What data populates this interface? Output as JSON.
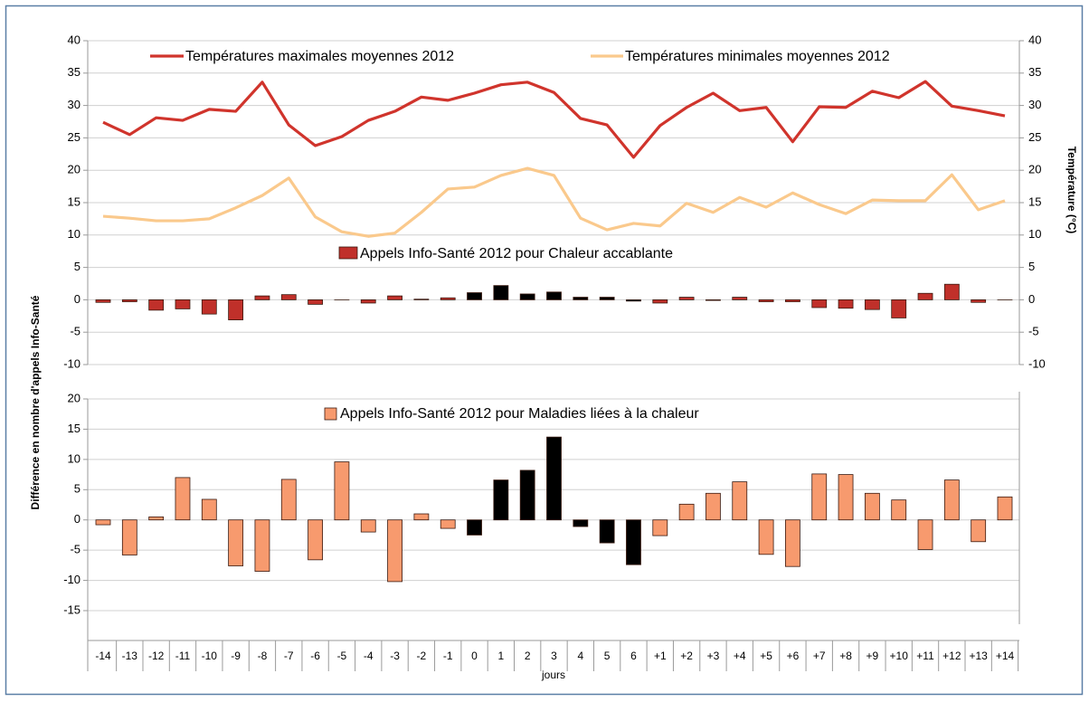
{
  "chart_data": [
    {
      "type": "combo",
      "ylabel": "Différence en nombre d'appels Info-Santé",
      "y2label": "Température (°C)",
      "ylim": [
        -10,
        40
      ],
      "yticks": [
        -10,
        -5,
        0,
        5,
        10,
        15,
        20,
        25,
        30,
        35,
        40
      ],
      "y2lim": [
        -10,
        40
      ],
      "y2ticks": [
        -10,
        -5,
        0,
        5,
        10,
        15,
        20,
        25,
        30,
        35,
        40
      ],
      "grid": true,
      "series": [
        {
          "name": "Températures maximales moyennes 2012",
          "type": "line",
          "axis": "y2",
          "color": "#d0342c",
          "values": [
            27.4,
            25.5,
            28.1,
            27.7,
            29.4,
            29.1,
            33.6,
            27.0,
            23.8,
            25.2,
            27.7,
            29.1,
            31.3,
            30.8,
            31.9,
            33.2,
            33.6,
            32.0,
            28.0,
            27.0,
            22.0,
            26.9,
            29.7,
            31.9,
            29.2,
            29.7,
            24.4,
            29.8,
            29.7,
            32.2,
            31.2,
            33.7,
            29.9,
            29.2,
            28.4
          ]
        },
        {
          "name": "Températures minimales moyennes 2012",
          "type": "line",
          "axis": "y2",
          "color": "#fac98c",
          "values": [
            12.9,
            12.6,
            12.2,
            12.2,
            12.5,
            14.2,
            16.1,
            18.8,
            12.8,
            10.5,
            9.8,
            10.3,
            13.5,
            17.1,
            17.4,
            19.2,
            20.3,
            19.2,
            12.6,
            10.8,
            11.8,
            11.4,
            14.9,
            13.5,
            15.8,
            14.3,
            16.5,
            14.7,
            13.3,
            15.4,
            15.3,
            15.3,
            19.3,
            13.9,
            15.3
          ]
        },
        {
          "name": "Appels Info-Santé 2012 pour Chaleur accablante",
          "type": "bar",
          "color": "#c0302a",
          "values": [
            -0.4,
            -0.3,
            -1.6,
            -1.4,
            -2.2,
            -3.1,
            0.6,
            0.8,
            -0.7,
            0,
            -0.5,
            0.6,
            0.1,
            0.3,
            1.1,
            2.2,
            0.9,
            1.2,
            0.4,
            0.4,
            -0.2,
            -0.5,
            0.4,
            -0.1,
            0.4,
            -0.3,
            -0.3,
            -1.2,
            -1.3,
            -1.5,
            -2.8,
            1.0,
            2.4,
            -0.4,
            0
          ],
          "colors": [
            "#c0302a",
            "#c0302a",
            "#c0302a",
            "#c0302a",
            "#c0302a",
            "#c0302a",
            "#c0302a",
            "#c0302a",
            "#c0302a",
            "#c0302a",
            "#c0302a",
            "#c0302a",
            "#c0302a",
            "#c0302a",
            "#000000",
            "#000000",
            "#000000",
            "#000000",
            "#000000",
            "#000000",
            "#000000",
            "#c0302a",
            "#c0302a",
            "#c0302a",
            "#c0302a",
            "#c0302a",
            "#c0302a",
            "#c0302a",
            "#c0302a",
            "#c0302a",
            "#c0302a",
            "#c0302a",
            "#c0302a",
            "#c0302a",
            "#c0302a"
          ]
        }
      ]
    },
    {
      "type": "bar",
      "xlabel": "jours",
      "categories": [
        "-14",
        "-13",
        "-12",
        "-11",
        "-10",
        "-9",
        "-8",
        "-7",
        "-6",
        "-5",
        "-4",
        "-3",
        "-2",
        "-1",
        "0",
        "1",
        "2",
        "3",
        "4",
        "5",
        "6",
        "+1",
        "+2",
        "+3",
        "+4",
        "+5",
        "+6",
        "+7",
        "+8",
        "+9",
        "+10",
        "+11",
        "+12",
        "+13",
        "+14"
      ],
      "ylim": [
        -15,
        20
      ],
      "yticks": [
        -15,
        -10,
        -5,
        0,
        5,
        10,
        15,
        20
      ],
      "grid": true,
      "series": [
        {
          "name": "Appels Info-Santé 2012 pour Maladies liées à la chaleur",
          "color": "#f79a6e",
          "values": [
            -0.8,
            -5.8,
            0.5,
            7.0,
            3.4,
            -7.6,
            -8.5,
            6.7,
            -6.6,
            9.6,
            -2.0,
            -10.2,
            1.0,
            -1.4,
            -2.5,
            6.6,
            8.2,
            13.7,
            -1.1,
            -3.8,
            -7.4,
            -2.6,
            2.6,
            4.4,
            6.3,
            -5.7,
            -7.7,
            7.6,
            7.5,
            4.4,
            3.3,
            -4.9,
            6.6,
            -3.6,
            3.8
          ],
          "colors": [
            "#f79a6e",
            "#f79a6e",
            "#f79a6e",
            "#f79a6e",
            "#f79a6e",
            "#f79a6e",
            "#f79a6e",
            "#f79a6e",
            "#f79a6e",
            "#f79a6e",
            "#f79a6e",
            "#f79a6e",
            "#f79a6e",
            "#f79a6e",
            "#000000",
            "#000000",
            "#000000",
            "#000000",
            "#000000",
            "#000000",
            "#000000",
            "#f79a6e",
            "#f79a6e",
            "#f79a6e",
            "#f79a6e",
            "#f79a6e",
            "#f79a6e",
            "#f79a6e",
            "#f79a6e",
            "#f79a6e",
            "#f79a6e",
            "#f79a6e",
            "#f79a6e",
            "#f79a6e",
            "#f79a6e"
          ]
        }
      ]
    }
  ]
}
